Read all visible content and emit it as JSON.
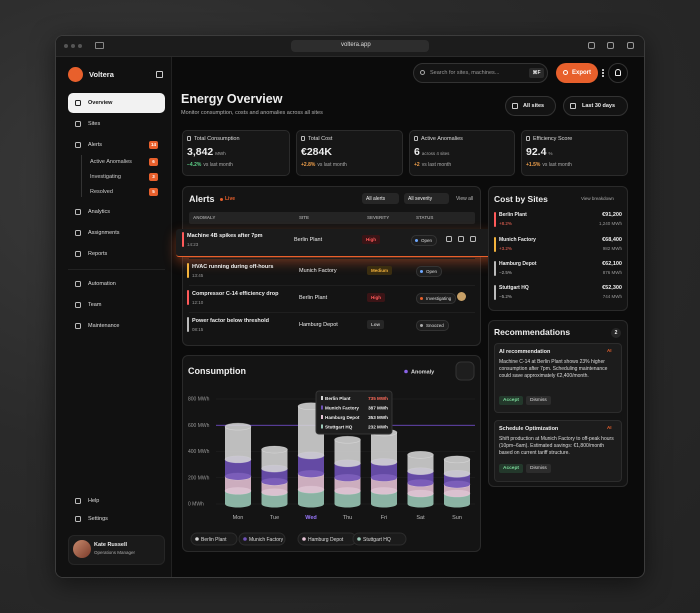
{
  "browser": {
    "url": "voltera.app"
  },
  "sidebar": {
    "brand": "Voltera",
    "nav": [
      {
        "label": "Overview"
      },
      {
        "label": "Sites"
      },
      {
        "label": "Alerts",
        "badge": "14"
      }
    ],
    "alert_filters": [
      {
        "label": "Active Anomalies",
        "badge": "6"
      },
      {
        "label": "Investigating",
        "badge": "3"
      },
      {
        "label": "Resolved",
        "badge": "5"
      }
    ],
    "nav_more": [
      {
        "label": "Analytics"
      },
      {
        "label": "Assignments"
      },
      {
        "label": "Reports"
      }
    ],
    "nav_ops": [
      {
        "label": "Automation"
      },
      {
        "label": "Team"
      },
      {
        "label": "Maintenance"
      }
    ],
    "footer": [
      {
        "label": "Help"
      },
      {
        "label": "Settings"
      }
    ],
    "user": {
      "name": "Kate Russell",
      "role": "Operations Manager"
    }
  },
  "header": {
    "title": "Energy Overview",
    "subtitle": "Monitor consumption, costs and anomalies across all sites",
    "search_placeholder": "Search for sites, machines...",
    "search_shortcut": "⌘F",
    "export": "Export",
    "site_filter": "All sites",
    "date_filter": "Last 30 days"
  },
  "kpis": [
    {
      "label": "Total Consumption",
      "value": "3,842",
      "unit": "MWh",
      "change": "−4.2%",
      "comparison": "vs last month"
    },
    {
      "label": "Total Cost",
      "value": "€284K",
      "change": "+2.8%",
      "comparison": "vs last month"
    },
    {
      "label": "Active Anomalies",
      "value": "6",
      "unit": "across 4 sites",
      "change": "+2",
      "comparison": "vs last month"
    },
    {
      "label": "Efficiency Score",
      "value": "92.4",
      "unit": "%",
      "change": "+1.5%",
      "comparison": "vs last month"
    }
  ],
  "alerts": {
    "title": "Alerts",
    "live": "Live",
    "filter_type": "All alerts",
    "filter_severity": "All severity",
    "view_all": "View all",
    "columns": [
      "ANOMALY",
      "SITE",
      "SEVERITY",
      "STATUS"
    ],
    "rows": [
      {
        "name": "Machine 4B spikes after 7pm",
        "time": "14:23",
        "site": "Berlin Plant",
        "severity": "High",
        "status": "Open"
      },
      {
        "name": "HVAC running during off-hours",
        "time": "13:45",
        "site": "Munich Factory",
        "severity": "Medium",
        "status": "Open"
      },
      {
        "name": "Compressor C-14 efficiency drop",
        "time": "12:10",
        "site": "Berlin Plant",
        "severity": "High",
        "status": "Investigating"
      },
      {
        "name": "Power factor below threshold",
        "time": "08:15",
        "site": "Hamburg Depot",
        "severity": "Low",
        "status": "Snoozed"
      }
    ]
  },
  "cost_by_sites": {
    "title": "Cost by Sites",
    "link": "View breakdown",
    "rows": [
      {
        "site": "Berlin Plant",
        "change": "+8.2%",
        "cost": "€91,200",
        "energy": "1,240 MWh"
      },
      {
        "site": "Munich Factory",
        "change": "+3.2%",
        "cost": "€68,400",
        "energy": "982 MWh"
      },
      {
        "site": "Hamburg Depot",
        "change": "−2.5%",
        "cost": "€62,100",
        "energy": "876 MWh"
      },
      {
        "site": "Stuttgart HQ",
        "change": "−5.2%",
        "cost": "€52,300",
        "energy": "744 MWh"
      }
    ]
  },
  "recommendations": {
    "title": "Recommendations",
    "count": "2",
    "items": [
      {
        "title": "AI recommendation",
        "tag": "AI",
        "text": "Machine C-14 at Berlin Plant shows 23% higher consumption after 7pm. Scheduling maintenance could save approximately €2,400/month.",
        "accept": "Accept",
        "dismiss": "Dismiss"
      },
      {
        "title": "Schedule Optimization",
        "tag": "AI",
        "text": "Shift production at Munich Factory to off-peak hours (10pm–6am). Estimated savings: €1,800/month based on current tariff structure.",
        "accept": "Accept",
        "dismiss": "Dismiss"
      }
    ]
  },
  "consumption": {
    "title": "Consumption",
    "toggle": "Anomaly",
    "categories": [
      "Mon",
      "Tue",
      "Wed",
      "Thu",
      "Fri",
      "Sat",
      "Sun"
    ],
    "ylim": [
      0,
      800
    ],
    "yticks": [
      {
        "value": 0,
        "label": "0 MWh"
      },
      {
        "value": 200,
        "label": "200 MWh"
      },
      {
        "value": 400,
        "label": "400 MWh"
      },
      {
        "value": 600,
        "label": "600 MWh"
      },
      {
        "value": 800,
        "label": "800 MWh"
      }
    ],
    "anomaly_threshold": 600,
    "series": [
      {
        "name": "Stuttgart HQ",
        "color": "#9cc9b8",
        "values": [
          100,
          90,
          110,
          100,
          100,
          80,
          80
        ]
      },
      {
        "name": "Hamburg Depot",
        "color": "#e6c3d6",
        "values": [
          110,
          80,
          120,
          100,
          100,
          80,
          70
        ]
      },
      {
        "name": "Munich Factory",
        "color": "#6f52b8",
        "values": [
          130,
          100,
          140,
          110,
          120,
          90,
          80
        ]
      },
      {
        "name": "Berlin Plant",
        "color": "#d6d6d6",
        "values": [
          250,
          145,
          375,
          180,
          225,
          125,
          110
        ]
      }
    ],
    "legend_order": [
      3,
      2,
      1,
      0
    ],
    "tooltip": {
      "rows": [
        {
          "site": "Berlin Plant",
          "value": "735 MWh"
        },
        {
          "site": "Munich Factory",
          "value": "387 MWh"
        },
        {
          "site": "Hamburg Depot",
          "value": "353 MWh"
        },
        {
          "site": "Stuttgart HQ",
          "value": "232 MWh"
        }
      ]
    }
  }
}
